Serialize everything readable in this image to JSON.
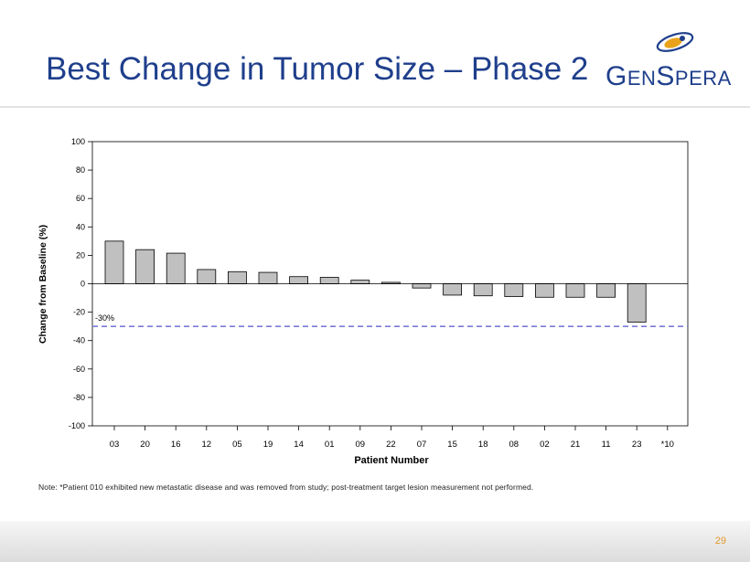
{
  "slide": {
    "title": "Best Change in Tumor Size – Phase 2",
    "logo_text": "GenSpera",
    "page_number": "29",
    "note": "Note: *Patient 010 exhibited new metastatic disease and was removed from study; post-treatment target lesion measurement not performed."
  },
  "colors": {
    "title": "#1f3f8c",
    "bar_fill": "#c0c0c0",
    "threshold_line": "#7b7bd6",
    "logo_swoosh": "#e9a31b",
    "page_number": "#e39a2e"
  },
  "chart_data": {
    "type": "bar",
    "xlabel": "Patient Number",
    "ylabel": "Change from Baseline (%)",
    "ylim": [
      -100,
      100
    ],
    "yticks": [
      100,
      80,
      60,
      40,
      20,
      0,
      -20,
      -40,
      -60,
      -80,
      -100
    ],
    "categories": [
      "03",
      "20",
      "16",
      "12",
      "05",
      "19",
      "14",
      "01",
      "09",
      "22",
      "07",
      "15",
      "18",
      "08",
      "02",
      "21",
      "11",
      "23",
      "*10"
    ],
    "values": [
      30,
      24,
      21.5,
      10,
      8.5,
      8,
      5,
      4.5,
      2.5,
      1,
      -3,
      -8,
      -8.5,
      -9,
      -9.5,
      -9.5,
      -9.5,
      -27,
      null
    ],
    "threshold": {
      "value": -30,
      "label": "-30%"
    },
    "grid": false
  }
}
